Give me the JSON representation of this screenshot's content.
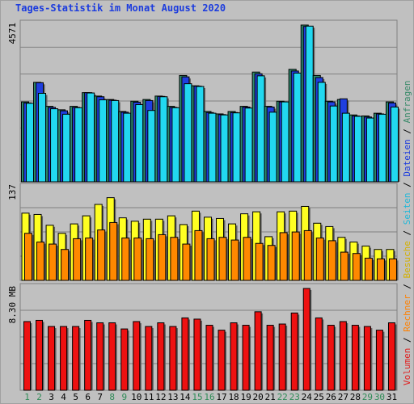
{
  "title": "Tages-Statistik im Monat August 2020",
  "panels": {
    "top": {
      "max_label": "4571"
    },
    "middle": {
      "max_label": "137"
    },
    "bottom": {
      "max_label": "8.30 MB"
    }
  },
  "right_labels": {
    "top": [
      {
        "text": "Anfragen",
        "color": "#3a8a6a"
      },
      {
        "text": " / ",
        "color": "#000000"
      },
      {
        "text": "Dateien",
        "color": "#1c3cde"
      }
    ],
    "middle": [
      {
        "text": " / ",
        "color": "#000000"
      },
      {
        "text": "Seiten",
        "color": "#22b8d8"
      },
      {
        "text": " / ",
        "color": "#000000"
      },
      {
        "text": "Besuche",
        "color": "#d4b000"
      }
    ],
    "bottom": [
      {
        "text": " / ",
        "color": "#000000"
      },
      {
        "text": "Rechner",
        "color": "#ff8000"
      },
      {
        "text": " / ",
        "color": "#000000"
      },
      {
        "text": "Volumen",
        "color": "#e02020"
      }
    ]
  },
  "colors": {
    "anfragen": "#2e8b6e",
    "dateien": "#1f3fe0",
    "seiten": "#22d8f0",
    "besuche": "#ffff22",
    "rechner": "#ff8800",
    "volumen": "#ee1111",
    "weekend_label": "#2e8b57",
    "weekday_label": "#000000"
  },
  "chart_data": {
    "type": "bar",
    "title": "Tages-Statistik im Monat August 2020",
    "categories": [
      "1",
      "2",
      "3",
      "4",
      "5",
      "6",
      "7",
      "8",
      "9",
      "10",
      "11",
      "12",
      "13",
      "14",
      "15",
      "16",
      "17",
      "18",
      "19",
      "20",
      "21",
      "22",
      "23",
      "24",
      "25",
      "26",
      "27",
      "28",
      "29",
      "30",
      "31"
    ],
    "weekend_days": [
      "1",
      "2",
      "8",
      "9",
      "15",
      "16",
      "22",
      "23",
      "29",
      "30"
    ],
    "panels": [
      {
        "name": "top",
        "ylim": [
          0,
          4571
        ],
        "series": [
          {
            "name": "Anfragen",
            "values": [
              2330,
              2900,
              2200,
              2100,
              2200,
              2600,
              2500,
              2400,
              2050,
              2350,
              2400,
              2500,
              2200,
              3100,
              2800,
              2050,
              1980,
              2050,
              2200,
              3200,
              2200,
              2350,
              3280,
              4571,
              3100,
              2350,
              2400,
              1950,
              1920,
              2000,
              2330
            ]
          },
          {
            "name": "Dateien",
            "values": [
              2300,
              2890,
              2170,
              2070,
              2170,
              2600,
              2480,
              2380,
              2030,
              2320,
              2370,
              2490,
              2170,
              3060,
              2790,
              2020,
              1960,
              2020,
              2180,
              3150,
              2180,
              2330,
              3230,
              4530,
              3040,
              2330,
              2420,
              1920,
              1890,
              1980,
              2300
            ]
          },
          {
            "name": "Seiten",
            "values": [
              2290,
              2580,
              2130,
              1970,
              2160,
              2590,
              2390,
              2370,
              2000,
              2250,
              2080,
              2480,
              2160,
              2860,
              2780,
              2000,
              1950,
              2010,
              2150,
              3090,
              2030,
              2330,
              3170,
              4540,
              2900,
              2210,
              2000,
              1910,
              1860,
              1970,
              2180
            ]
          }
        ]
      },
      {
        "name": "middle",
        "ylim": [
          0,
          137
        ],
        "series": [
          {
            "name": "Besuche",
            "values": [
              100,
              98,
              82,
              70,
              84,
              96,
              113,
              123,
              93,
              88,
              91,
              91,
              96,
              83,
              103,
              94,
              92,
              84,
              99,
              102,
              65,
              102,
              103,
              110,
              85,
              80,
              64,
              57,
              51,
              46,
              46
            ]
          },
          {
            "name": "Rechner",
            "values": [
              70,
              57,
              54,
              46,
              62,
              63,
              75,
              86,
              63,
              63,
              62,
              68,
              64,
              54,
              74,
              62,
              64,
              60,
              64,
              55,
              52,
              71,
              72,
              74,
              63,
              59,
              42,
              40,
              33,
              32,
              32
            ]
          }
        ]
      },
      {
        "name": "bottom",
        "ylabel": "8.30 MB",
        "ylim": [
          0,
          8.3
        ],
        "series": [
          {
            "name": "Volumen",
            "values": [
              5.6,
              5.7,
              5.2,
              5.2,
              5.2,
              5.7,
              5.5,
              5.5,
              5.0,
              5.6,
              5.2,
              5.5,
              5.2,
              5.9,
              5.8,
              5.3,
              4.9,
              5.5,
              5.3,
              6.4,
              5.3,
              5.4,
              6.3,
              8.3,
              5.9,
              5.3,
              5.6,
              5.3,
              5.2,
              4.9,
              5.5
            ]
          }
        ]
      }
    ]
  }
}
